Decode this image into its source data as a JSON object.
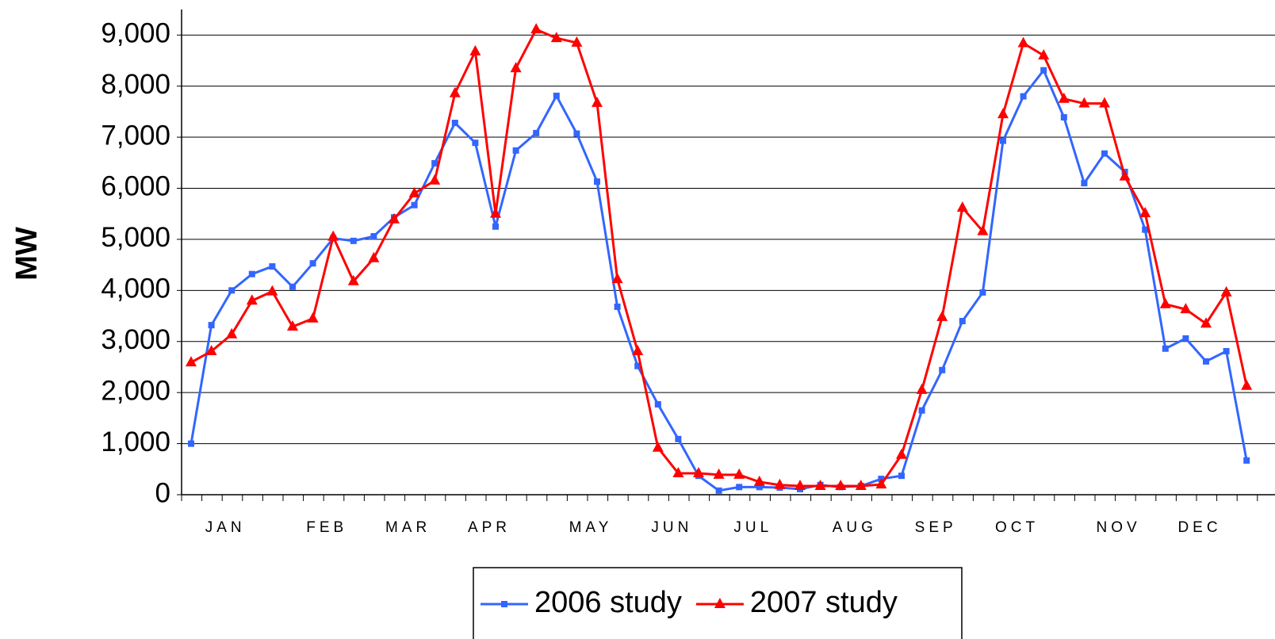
{
  "chart_data": {
    "type": "line",
    "y_label": "MW",
    "categories": [
      null,
      null,
      "JAN",
      null,
      null,
      null,
      null,
      "FEB",
      null,
      null,
      null,
      "MAR",
      null,
      null,
      null,
      "APR",
      null,
      null,
      null,
      null,
      "MAY",
      null,
      null,
      null,
      "JUN",
      null,
      null,
      null,
      "JUL",
      null,
      null,
      null,
      null,
      "AUG",
      null,
      null,
      null,
      "SEP",
      null,
      null,
      null,
      "OCT",
      null,
      null,
      null,
      null,
      "NOV",
      null,
      null,
      null,
      "DEC",
      null,
      null
    ],
    "series": [
      {
        "name": "2006 study",
        "color": "#3366ff",
        "marker": "square",
        "values": [
          1000,
          3320,
          4000,
          4320,
          4470,
          4070,
          4530,
          5020,
          4970,
          5060,
          5430,
          5670,
          6490,
          7280,
          6890,
          5250,
          6740,
          7080,
          7810,
          7070,
          6130,
          3680,
          2520,
          1770,
          1090,
          370,
          80,
          150,
          150,
          140,
          110,
          190,
          150,
          170,
          310,
          370,
          1650,
          2440,
          3400,
          3960,
          6930,
          7800,
          8310,
          7390,
          6100,
          6680,
          6320,
          5190,
          2860,
          3060,
          2610,
          2810,
          670
        ]
      },
      {
        "name": "2007 study",
        "color": "#ff0000",
        "marker": "triangle",
        "values": [
          2590,
          2810,
          3140,
          3800,
          3980,
          3290,
          3450,
          5050,
          4180,
          4630,
          5390,
          5900,
          6150,
          7860,
          8680,
          5500,
          8350,
          9110,
          8940,
          8850,
          7670,
          4220,
          2810,
          920,
          420,
          420,
          390,
          390,
          250,
          190,
          170,
          170,
          170,
          170,
          200,
          780,
          2050,
          3480,
          5620,
          5160,
          7450,
          8840,
          8600,
          7750,
          7660,
          7660,
          6230,
          5510,
          3730,
          3630,
          3350,
          3960,
          2130
        ]
      }
    ],
    "ylim": [
      0,
      9500
    ],
    "yticks": [
      0,
      {
        "value": 1000,
        "label": "1,000"
      },
      {
        "value": 2000,
        "label": "2,000"
      },
      {
        "value": 3000,
        "label": "3,000"
      },
      {
        "value": 4000,
        "label": "4,000"
      },
      {
        "value": 5000,
        "label": "5,000"
      },
      {
        "value": 6000,
        "label": "6,000"
      },
      {
        "value": 7000,
        "label": "7,000"
      },
      {
        "value": 8000,
        "label": "8,000"
      },
      {
        "value": 9000,
        "label": "9,000"
      }
    ],
    "grid": true,
    "legend": "bottom"
  }
}
